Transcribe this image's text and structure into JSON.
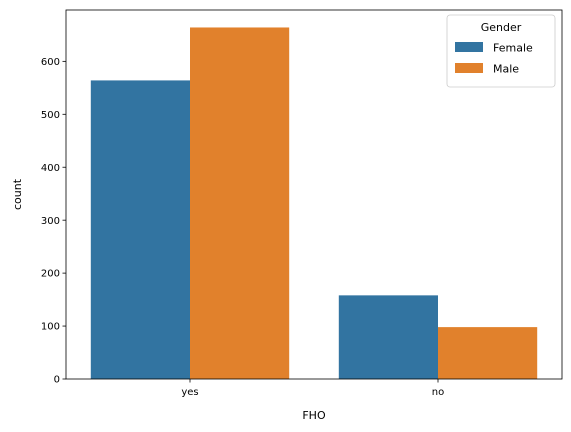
{
  "chart_data": {
    "type": "bar",
    "categories": [
      "yes",
      "no"
    ],
    "series": [
      {
        "name": "Female",
        "values": [
          564,
          158
        ]
      },
      {
        "name": "Male",
        "values": [
          664,
          98
        ]
      }
    ],
    "colors": [
      "#3274a1",
      "#e1812c"
    ],
    "xlabel": "FHO",
    "ylabel": "count",
    "ylim": [
      0,
      697
    ],
    "yticks": [
      0,
      100,
      200,
      300,
      400,
      500,
      600
    ],
    "grid": false,
    "legend": {
      "title": "Gender",
      "placement": "top-right"
    }
  }
}
